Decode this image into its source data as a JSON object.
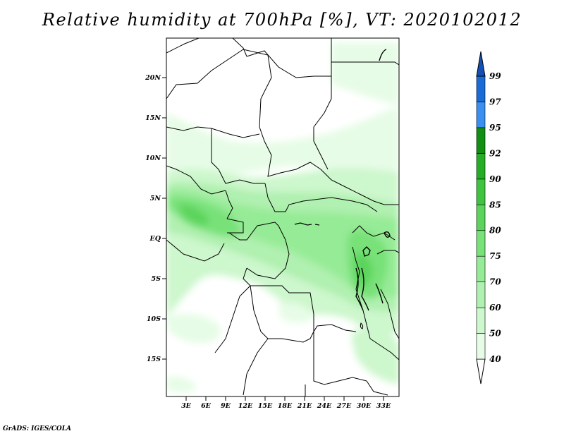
{
  "title": "Relative humidity at 700hPa [%], VT: 2020102012",
  "footer": "GrADS: IGES/COLA",
  "map": {
    "lon_ticks": [
      "3E",
      "6E",
      "9E",
      "12E",
      "15E",
      "18E",
      "21E",
      "24E",
      "27E",
      "30E",
      "33E"
    ],
    "lat_ticks": [
      "20N",
      "15N",
      "10N",
      "5N",
      "EQ",
      "5S",
      "10S",
      "15S"
    ]
  },
  "colorbar": {
    "levels": [
      "40",
      "50",
      "60",
      "70",
      "75",
      "80",
      "85",
      "90",
      "92",
      "95",
      "97",
      "99"
    ],
    "colors": [
      "#ffffff",
      "#e6fce6",
      "#cdf7cd",
      "#b0f0b0",
      "#96eb96",
      "#78e178",
      "#5cd45c",
      "#3fc43f",
      "#26ad26",
      "#128f12",
      "#3a8ff0",
      "#1a6bd8",
      "#1450b4"
    ]
  }
}
